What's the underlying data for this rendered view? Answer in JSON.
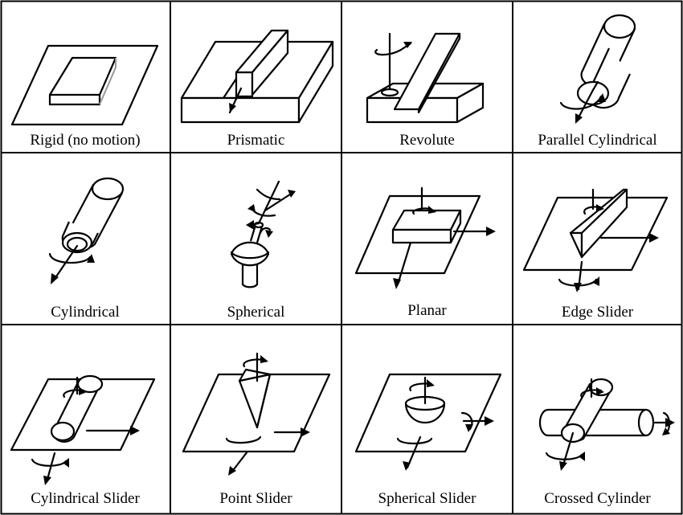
{
  "joints": [
    {
      "id": "rigid",
      "label": "Rigid (no motion)"
    },
    {
      "id": "prismatic",
      "label": "Prismatic"
    },
    {
      "id": "revolute",
      "label": "Revolute"
    },
    {
      "id": "parallel-cylindrical",
      "label": "Parallel Cylindrical"
    },
    {
      "id": "cylindrical",
      "label": "Cylindrical"
    },
    {
      "id": "spherical",
      "label": "Spherical"
    },
    {
      "id": "planar",
      "label": "Planar"
    },
    {
      "id": "edge-slider",
      "label": "Edge Slider"
    },
    {
      "id": "cylindrical-slider",
      "label": "Cylindrical Slider"
    },
    {
      "id": "point-slider",
      "label": "Point Slider"
    },
    {
      "id": "spherical-slider",
      "label": "Spherical Slider"
    },
    {
      "id": "crossed-cylinder",
      "label": "Crossed Cylinder"
    }
  ]
}
